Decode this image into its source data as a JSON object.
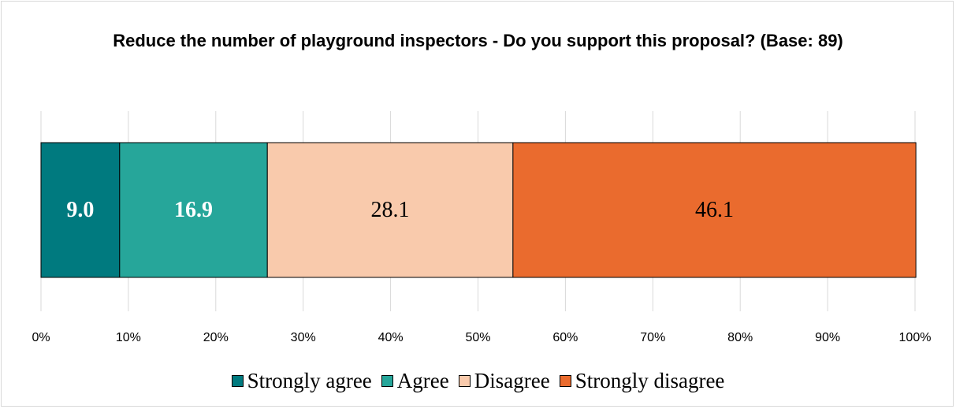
{
  "chart_data": {
    "type": "bar",
    "orientation": "horizontal",
    "stacked": true,
    "title": "Reduce the number of playground inspectors -  Do you support this proposal? (Base: 89)",
    "xlim": [
      0,
      100
    ],
    "x_ticks": [
      "0%",
      "10%",
      "20%",
      "30%",
      "40%",
      "50%",
      "60%",
      "70%",
      "80%",
      "90%",
      "100%"
    ],
    "grid": true,
    "legend_position": "bottom",
    "series": [
      {
        "name": "Strongly agree",
        "value": 9.0,
        "label": "9.0",
        "color": "#007A7F",
        "label_color": "#ffffff",
        "label_bold": true
      },
      {
        "name": "Agree",
        "value": 16.9,
        "label": "16.9",
        "color": "#26A69A",
        "label_color": "#ffffff",
        "label_bold": true
      },
      {
        "name": "Disagree",
        "value": 28.1,
        "label": "28.1",
        "color": "#F9CAAC",
        "label_color": "#000000",
        "label_bold": false
      },
      {
        "name": "Strongly disagree",
        "value": 46.1,
        "label": "46.1",
        "color": "#EA6B2E",
        "label_color": "#000000",
        "label_bold": false
      }
    ]
  }
}
